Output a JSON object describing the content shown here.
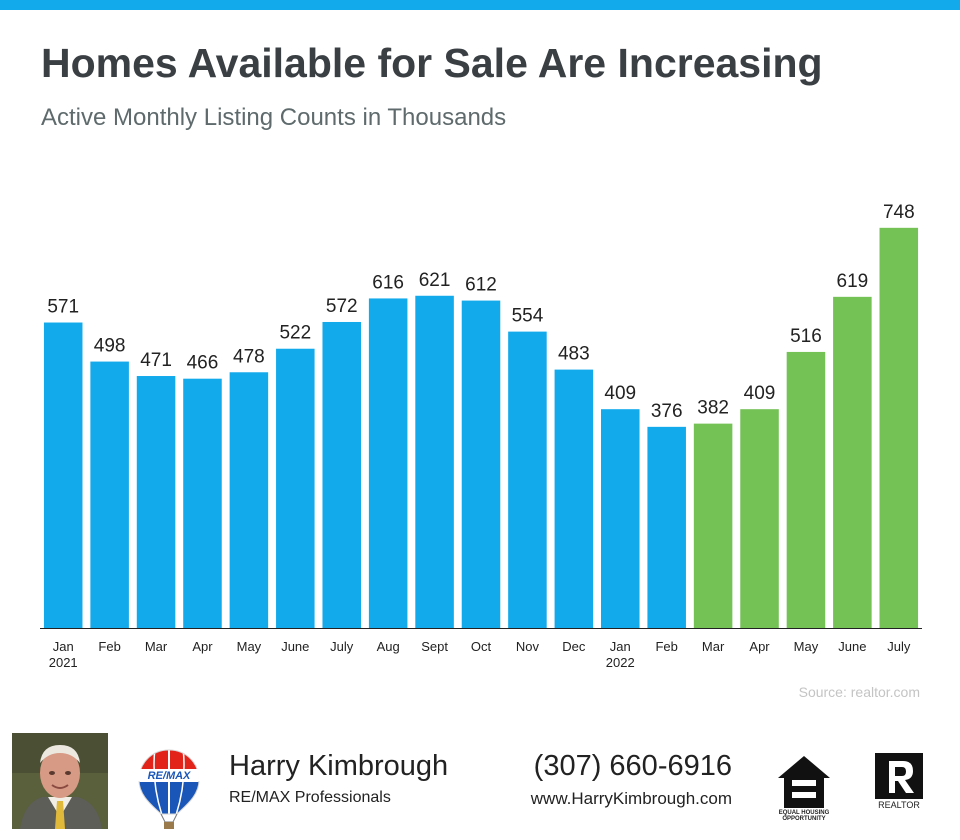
{
  "header": {
    "title": "Homes Available for Sale Are Increasing",
    "subtitle": "Active Monthly Listing Counts in Thousands"
  },
  "chart_data": {
    "type": "bar",
    "title": "Homes Available for Sale Are Increasing",
    "subtitle": "Active Monthly Listing Counts in Thousands",
    "xlabel": "",
    "ylabel": "",
    "ylim": [
      0,
      800
    ],
    "grid": false,
    "categories": [
      "Jan",
      "Feb",
      "Mar",
      "Apr",
      "May",
      "June",
      "July",
      "Aug",
      "Sept",
      "Oct",
      "Nov",
      "Dec",
      "Jan",
      "Feb",
      "Mar",
      "Apr",
      "May",
      "June",
      "July"
    ],
    "category_sublabels": [
      "2021",
      "",
      "",
      "",
      "",
      "",
      "",
      "",
      "",
      "",
      "",
      "",
      "2022",
      "",
      "",
      "",
      "",
      "",
      ""
    ],
    "values": [
      571,
      498,
      471,
      466,
      478,
      522,
      572,
      616,
      621,
      612,
      554,
      483,
      409,
      376,
      382,
      409,
      516,
      619,
      748
    ],
    "bar_colors": [
      "#13aaec",
      "#13aaec",
      "#13aaec",
      "#13aaec",
      "#13aaec",
      "#13aaec",
      "#13aaec",
      "#13aaec",
      "#13aaec",
      "#13aaec",
      "#13aaec",
      "#13aaec",
      "#13aaec",
      "#13aaec",
      "#74c156",
      "#74c156",
      "#74c156",
      "#74c156",
      "#74c156"
    ],
    "data_labels": true
  },
  "source": "Source: realtor.com",
  "footer": {
    "agent_name": "Harry Kimbrough",
    "company": "RE/MAX Professionals",
    "phone": "(307) 660-6916",
    "website": "www.HarryKimbrough.com",
    "logos": {
      "remax": "RE/MAX",
      "equal_housing": "EQUAL HOUSING OPPORTUNITY",
      "realtor": "REALTOR"
    }
  },
  "colors": {
    "accent": "#13aaec",
    "increase": "#74c156",
    "title": "#3a3f44",
    "subtitle": "#5e6a6c",
    "source": "#c4c4c4"
  }
}
